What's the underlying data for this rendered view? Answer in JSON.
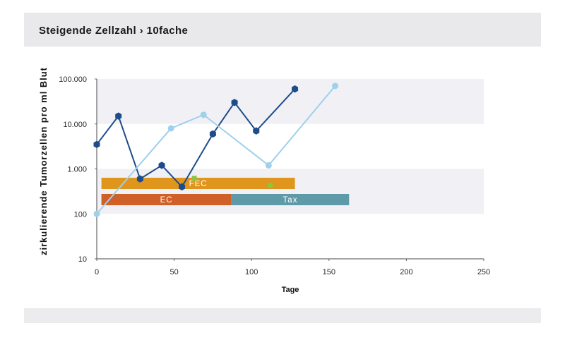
{
  "chart_data": {
    "type": "line",
    "title": "Steigende Zellzahl › 10fache",
    "xlabel": "Tage",
    "ylabel": "zirkulierende Tumorzellen pro ml Blut",
    "xlim": [
      0,
      250
    ],
    "ylim": [
      10,
      100000
    ],
    "yscale": "log",
    "grid": true,
    "legend": false,
    "xticks": [
      0,
      50,
      100,
      150,
      200,
      250
    ],
    "xtick_labels": [
      "0",
      "50",
      "100",
      "150",
      "200",
      "250"
    ],
    "yticks": [
      10,
      100,
      1000,
      10000,
      100000
    ],
    "ytick_labels": [
      "10",
      "100",
      "1.000",
      "10.000",
      "100.000"
    ],
    "series": [
      {
        "color": "#1e4c8a",
        "marker": "hexagon",
        "line": true,
        "x": [
          0,
          14,
          28,
          42,
          55,
          75,
          89,
          103,
          128
        ],
        "y": [
          3500,
          15000,
          600,
          1200,
          400,
          6000,
          30000,
          7000,
          60000
        ]
      },
      {
        "color": "#9fd0ec",
        "marker": "circle",
        "line": true,
        "x": [
          0,
          48,
          69,
          111,
          154
        ],
        "y": [
          100,
          8000,
          16000,
          1200,
          70000
        ]
      },
      {
        "color": "#8cc63f",
        "marker": "square",
        "line": false,
        "x": [
          63,
          112
        ],
        "y": [
          620,
          430
        ]
      }
    ],
    "treatments": [
      [
        {
          "label": "FEC",
          "start": 3,
          "end": 128,
          "color": "#e0961c"
        }
      ],
      [
        {
          "label": "EC",
          "start": 3,
          "end": 87,
          "color": "#cf6027"
        },
        {
          "label": "Tax",
          "start": 87,
          "end": 163,
          "color": "#5e9aa7"
        }
      ]
    ]
  }
}
